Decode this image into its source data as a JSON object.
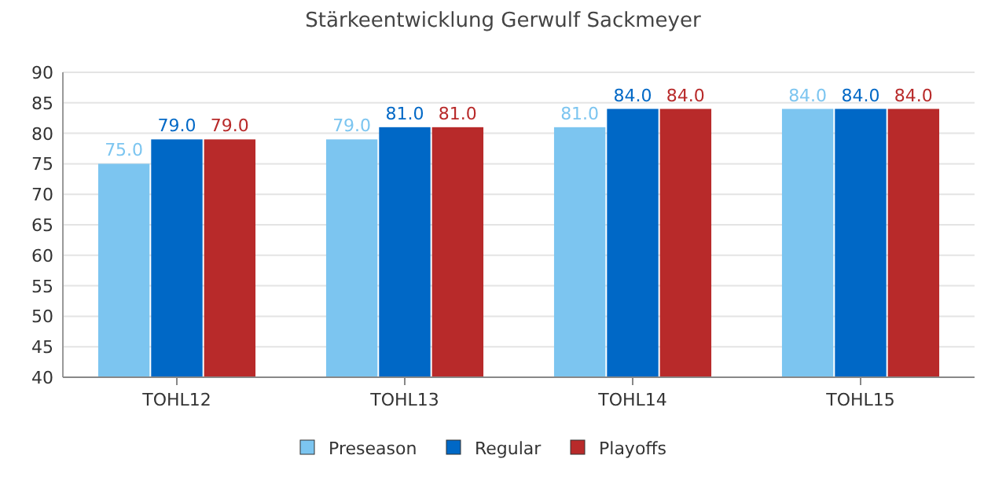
{
  "chart_data": {
    "type": "bar",
    "title": "Stärkeentwicklung Gerwulf Sackmeyer",
    "categories": [
      "TOHL12",
      "TOHL13",
      "TOHL14",
      "TOHL15"
    ],
    "series": [
      {
        "name": "Preseason",
        "color": "#7cc5f0",
        "values": [
          75,
          79,
          81,
          84
        ]
      },
      {
        "name": "Regular",
        "color": "#0068c6",
        "values": [
          79,
          81,
          84,
          84
        ]
      },
      {
        "name": "Playoffs",
        "color": "#b82a2a",
        "values": [
          79,
          81,
          84,
          84
        ]
      }
    ],
    "ylim": [
      40,
      90
    ],
    "yticks": [
      40,
      45,
      50,
      55,
      60,
      65,
      70,
      75,
      80,
      85,
      90
    ],
    "grid": "y",
    "legend": "bottom",
    "value_labels": [
      [
        "75.0",
        "79.0",
        "81.0",
        "84.0"
      ],
      [
        "79.0",
        "81.0",
        "84.0",
        "84.0"
      ],
      [
        "79.0",
        "81.0",
        "84.0",
        "84.0"
      ]
    ]
  }
}
